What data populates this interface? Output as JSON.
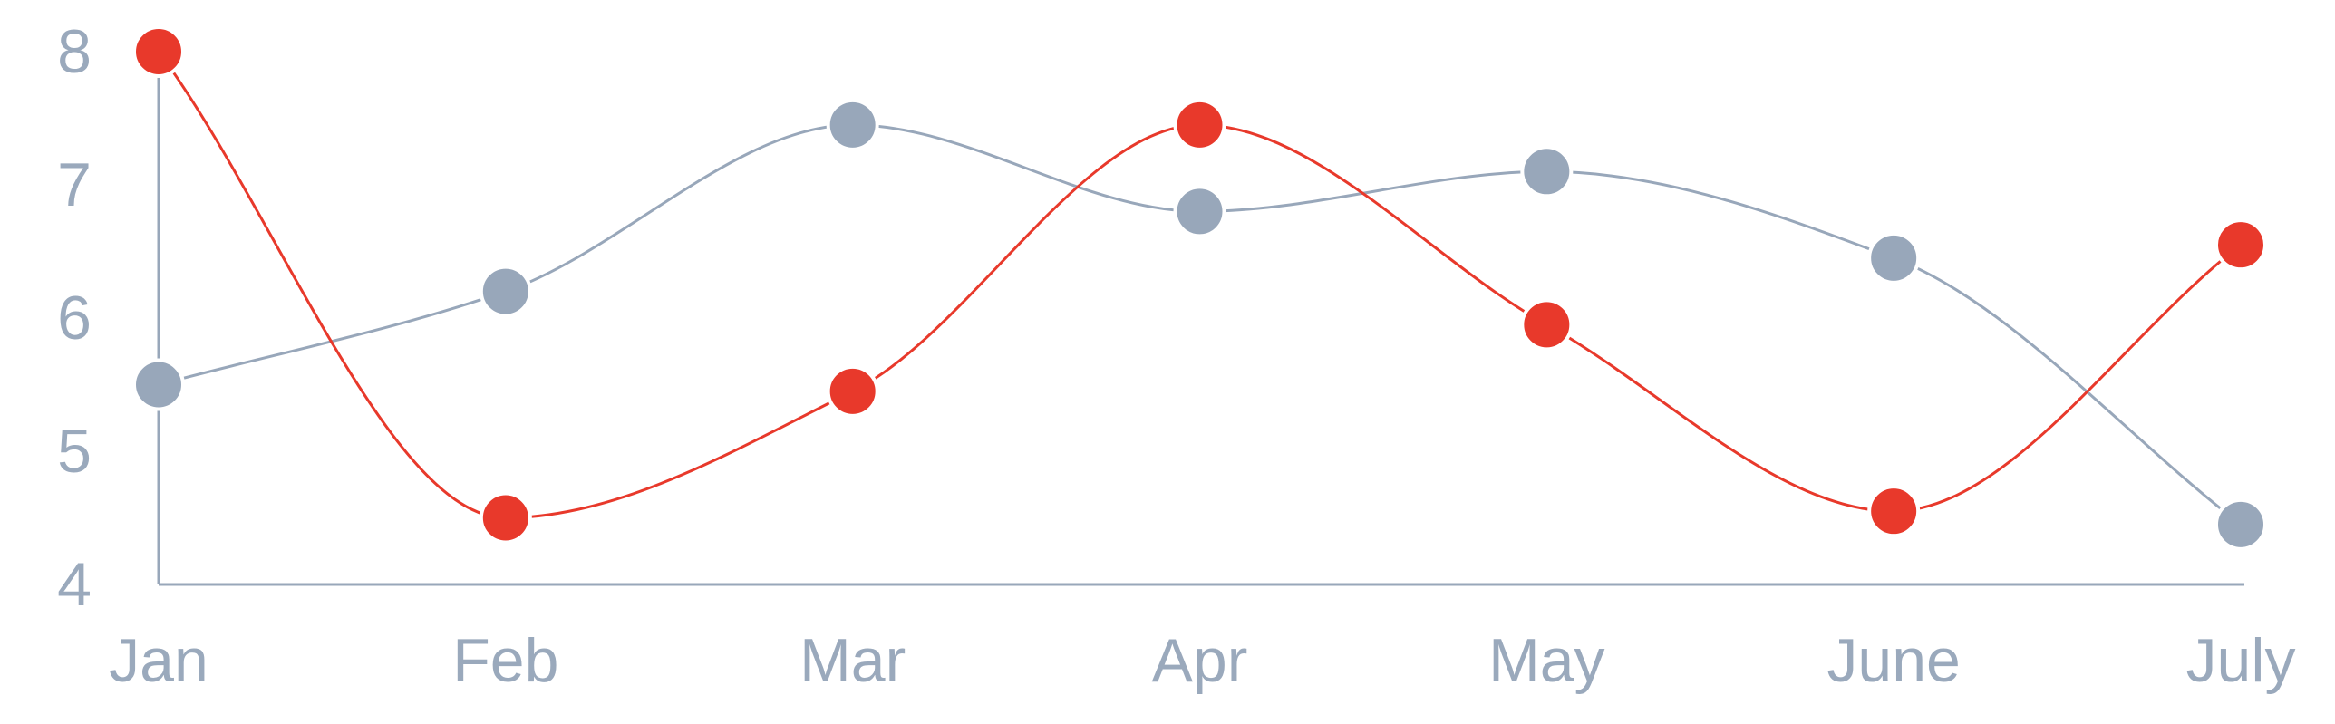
{
  "chart_data": {
    "type": "line",
    "smooth": true,
    "title": "",
    "xlabel": "",
    "ylabel": "",
    "categories": [
      "Jan",
      "Feb",
      "Mar",
      "Apr",
      "May",
      "June",
      "July"
    ],
    "y_ticks": [
      "4",
      "5",
      "6",
      "7",
      "8"
    ],
    "ylim": [
      4,
      8
    ],
    "grid": false,
    "legend": "none",
    "series": [
      {
        "color": "#e8392b",
        "values": [
          8.0,
          4.5,
          5.45,
          7.45,
          5.95,
          4.55,
          6.55
        ]
      },
      {
        "color": "#98a7ba",
        "values": [
          5.5,
          6.2,
          7.45,
          6.8,
          7.1,
          6.45,
          4.45
        ]
      }
    ],
    "axis_color": "#98a7ba",
    "label_color": "#9aa9bc"
  }
}
